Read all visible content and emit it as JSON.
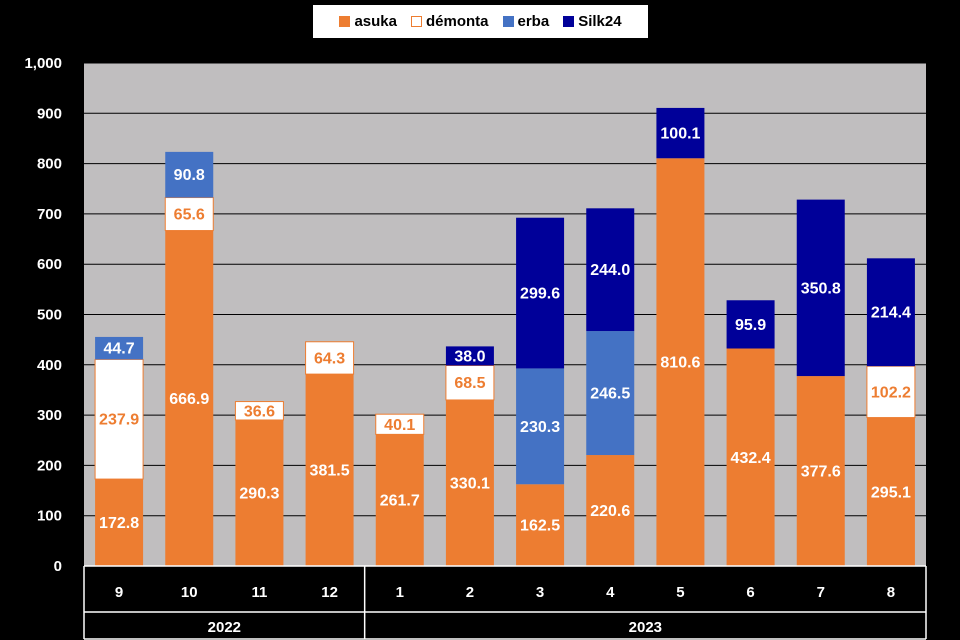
{
  "chart_data": {
    "type": "bar",
    "stacked": true,
    "categories": [
      "9",
      "10",
      "11",
      "12",
      "1",
      "2",
      "3",
      "4",
      "5",
      "6",
      "7",
      "8"
    ],
    "year_groups": [
      {
        "label": "2022",
        "count": 4
      },
      {
        "label": "2023",
        "count": 8
      }
    ],
    "series": [
      {
        "name": "asuka",
        "color": "#ED7D31",
        "label_color": "#FFFFFF",
        "values": [
          172.8,
          666.9,
          290.3,
          381.5,
          261.7,
          330.1,
          162.5,
          220.6,
          810.6,
          432.4,
          377.6,
          295.1
        ]
      },
      {
        "name": "démonta",
        "color": "#FFFFFF",
        "border": "#ED7D31",
        "label_color": "#ED7D31",
        "values": [
          237.9,
          65.6,
          36.6,
          64.3,
          40.1,
          68.5,
          null,
          null,
          null,
          null,
          null,
          102.2
        ]
      },
      {
        "name": "erba",
        "color": "#4472C4",
        "label_color": "#FFFFFF",
        "values": [
          44.7,
          90.8,
          null,
          null,
          null,
          null,
          230.3,
          246.5,
          null,
          null,
          null,
          null
        ]
      },
      {
        "name": "Silk24",
        "color": "#000099",
        "label_color": "#FFFFFF",
        "values": [
          null,
          null,
          null,
          null,
          null,
          38.0,
          299.6,
          244.0,
          100.1,
          95.9,
          350.8,
          214.4
        ]
      }
    ],
    "ylim": [
      0,
      1000
    ],
    "yticks": [
      "0",
      "100",
      "200",
      "300",
      "400",
      "500",
      "600",
      "700",
      "800",
      "900",
      "1,000"
    ],
    "grid": true,
    "legend": "top-center",
    "plot_background": "#C0BEBF"
  }
}
